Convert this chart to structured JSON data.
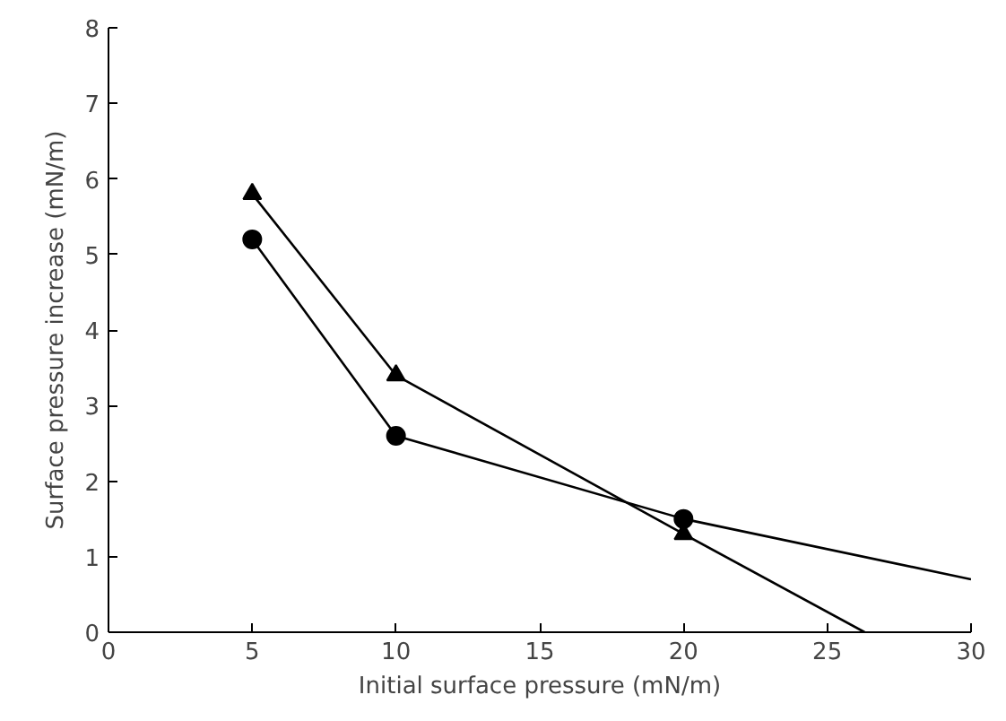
{
  "chart_data": {
    "type": "line",
    "xlabel": "Initial surface pressure (mN/m)",
    "ylabel": "Surface pressure increase (mN/m)",
    "xlim": [
      0,
      30
    ],
    "ylim": [
      0,
      8
    ],
    "xticks": [
      0,
      5,
      10,
      15,
      20,
      25,
      30
    ],
    "yticks": [
      0,
      1,
      2,
      3,
      4,
      5,
      6,
      7,
      8
    ],
    "grid": false,
    "line_style": "solid",
    "series": [
      {
        "color": "#000000",
        "x": [
          5,
          10,
          20
        ],
        "values": [
          5.8,
          3.4,
          1.3
        ],
        "marker": "triangle"
      },
      {
        "color": "#000000",
        "x": [
          5,
          10,
          20
        ],
        "values": [
          5.2,
          2.6,
          1.5
        ],
        "marker": "circle"
      },
      {
        "color": "#000000",
        "x": [
          20,
          26.3
        ],
        "values": [
          1.3,
          0
        ],
        "marker": "none"
      },
      {
        "color": "#000000",
        "x": [
          20,
          30
        ],
        "values": [
          1.5,
          0.7
        ],
        "marker": "none"
      }
    ]
  }
}
